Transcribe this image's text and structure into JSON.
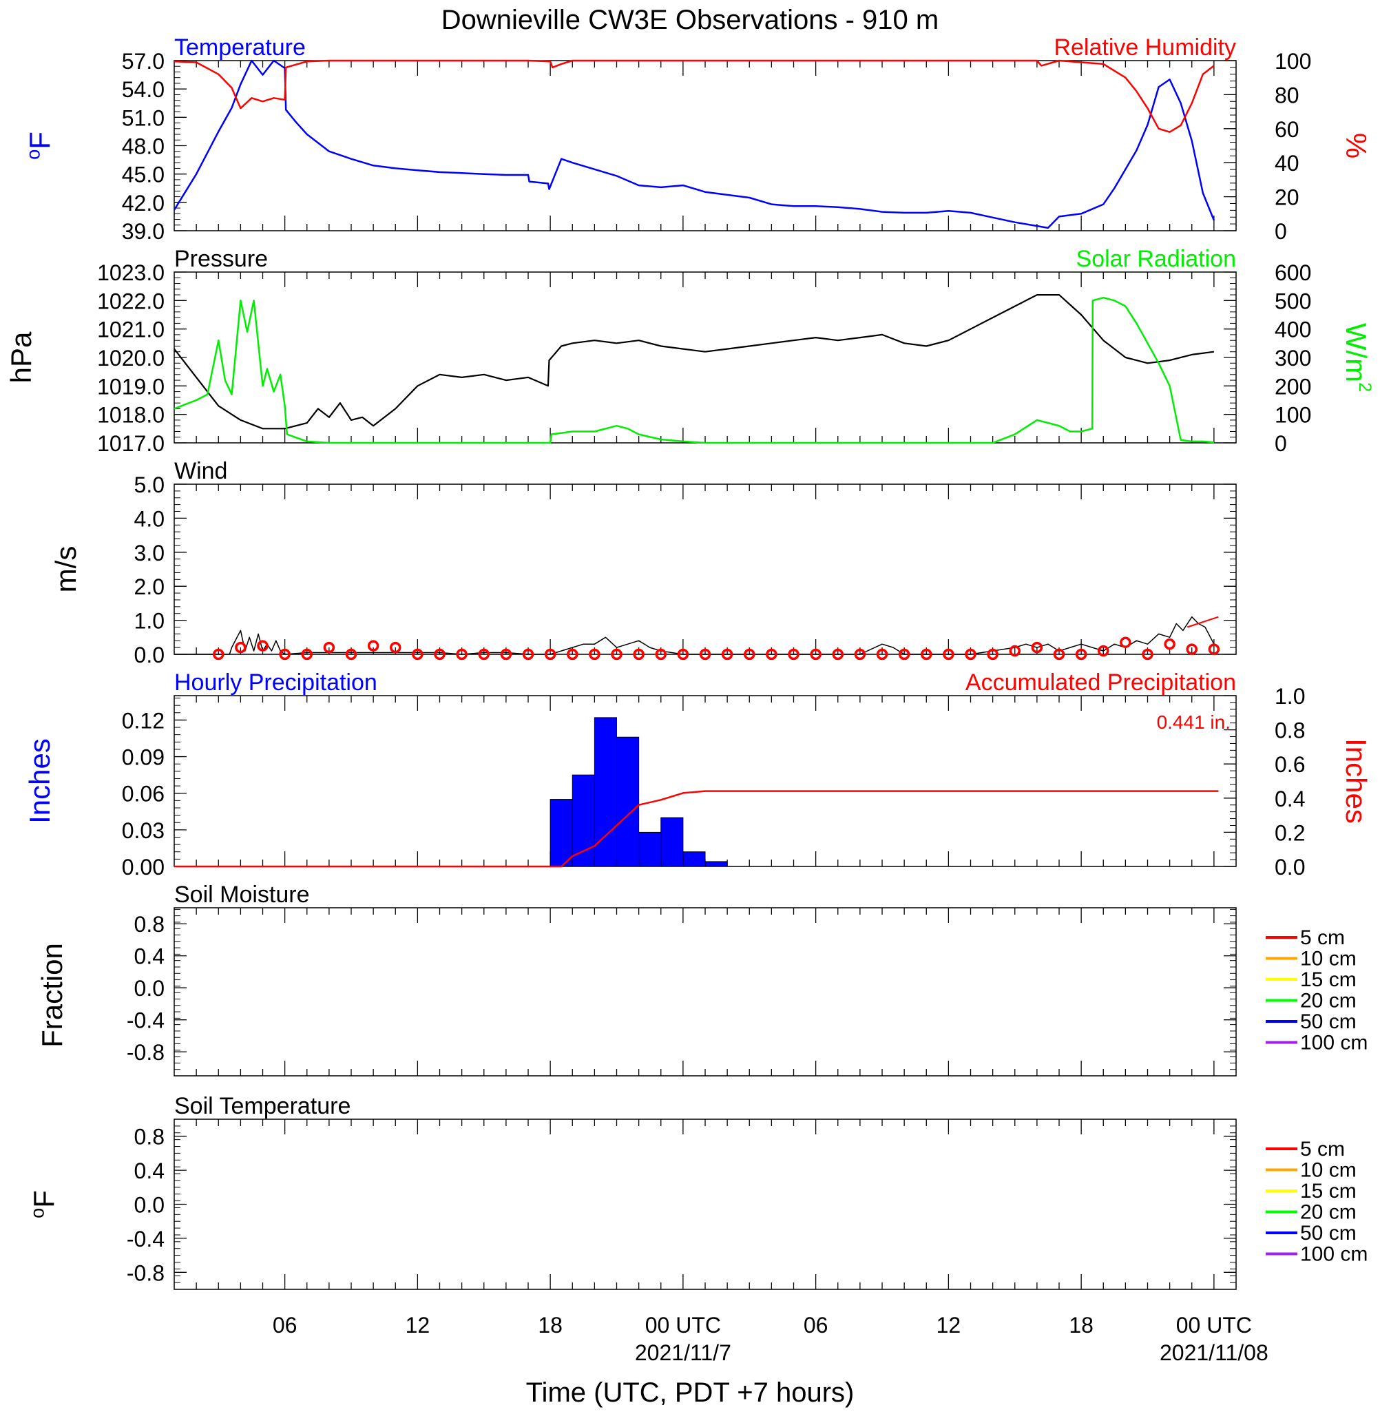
{
  "title": "Downieville CW3E Observations - 910 m",
  "colors": {
    "temperature": "#0000ff",
    "humidity": "#ff0000",
    "pressure": "#000000",
    "solar": "#00ee00",
    "wind": "#000000",
    "gust_marker": "#ff0000",
    "hourly_precip": "#0000ff",
    "accum_precip": "#ff0000"
  },
  "x_axis": {
    "label": "Time (UTC, PDT +7 hours)",
    "range_hours": [
      0,
      48
    ],
    "ticks": [
      {
        "hour": 5,
        "label": "06",
        "date": ""
      },
      {
        "hour": 11,
        "label": "12",
        "date": ""
      },
      {
        "hour": 17,
        "label": "18",
        "date": ""
      },
      {
        "hour": 23,
        "label": "00 UTC",
        "date": "2021/11/7"
      },
      {
        "hour": 29,
        "label": "06",
        "date": ""
      },
      {
        "hour": 35,
        "label": "12",
        "date": ""
      },
      {
        "hour": 41,
        "label": "18",
        "date": ""
      },
      {
        "hour": 47,
        "label": "00 UTC",
        "date": "2021/11/08"
      }
    ]
  },
  "chart_data": [
    {
      "type": "line",
      "panel": "temperature-humidity",
      "left_axis": {
        "title": "Temperature",
        "units": "°F",
        "ylim": [
          39,
          57
        ],
        "ticks": [
          "39.0",
          "42.0",
          "45.0",
          "48.0",
          "51.0",
          "54.0",
          "57.0"
        ]
      },
      "right_axis": {
        "title": "Relative Humidity",
        "units": "%",
        "ylim": [
          0,
          100
        ],
        "ticks": [
          "0",
          "20",
          "40",
          "60",
          "80",
          "100"
        ]
      },
      "series": [
        {
          "name": "Temperature",
          "axis": "left",
          "color": "#0000ff",
          "x": [
            0,
            1,
            2,
            2.6,
            3,
            3.5,
            4,
            4.5,
            5,
            5.05,
            5.5,
            6,
            7,
            8,
            9,
            10,
            11,
            12,
            13,
            14,
            15,
            16,
            16.05,
            16.9,
            16.95,
            17.5,
            18,
            19,
            20,
            21,
            22,
            23,
            24,
            25,
            26,
            27,
            28,
            29,
            30,
            31,
            32,
            33,
            34,
            35,
            36,
            37,
            38,
            39,
            39.5,
            40,
            41,
            42,
            42.5,
            43,
            43.5,
            44,
            44.5,
            45,
            45.5,
            46,
            46.5,
            47
          ],
          "y": [
            41.2,
            45,
            49.5,
            52,
            54.5,
            57,
            55.5,
            57,
            56.2,
            51.8,
            50.5,
            49.2,
            47.4,
            46.6,
            45.9,
            45.6,
            45.4,
            45.2,
            45.1,
            45,
            44.9,
            44.9,
            44.2,
            44,
            43.4,
            46.6,
            46.2,
            45.5,
            44.8,
            43.8,
            43.6,
            43.8,
            43.1,
            42.8,
            42.5,
            41.8,
            41.6,
            41.6,
            41.5,
            41.3,
            41,
            40.9,
            40.9,
            41.1,
            40.9,
            40.4,
            39.9,
            39.5,
            39.3,
            40.5,
            40.8,
            41.8,
            43.5,
            45.5,
            47.5,
            50.2,
            54.2,
            55,
            52.5,
            48.5,
            43,
            40.1
          ]
        },
        {
          "name": "Relative Humidity",
          "axis": "right",
          "color": "#ff0000",
          "x": [
            0,
            1,
            2,
            2.6,
            3,
            3.5,
            4,
            4.5,
            5,
            5.05,
            6,
            7,
            8,
            9,
            10,
            11,
            12,
            13,
            14,
            15,
            16,
            17,
            17.1,
            17.5,
            18,
            20,
            22,
            24,
            26,
            28,
            30,
            32,
            34,
            36,
            38,
            39,
            39.2,
            40,
            41,
            42,
            43,
            43.5,
            44,
            44.5,
            45,
            45.5,
            46,
            46.5,
            47
          ],
          "y": [
            99.5,
            99,
            92,
            84,
            72,
            78,
            76,
            78,
            77,
            96,
            99.5,
            100,
            100,
            100,
            100,
            100,
            100,
            100,
            100,
            100,
            100,
            99.5,
            96,
            98,
            100,
            100,
            100,
            100,
            100,
            100,
            100,
            100,
            100,
            100,
            100,
            100,
            97,
            100,
            99,
            98,
            90,
            82,
            72,
            60,
            58,
            62,
            75,
            92,
            97
          ]
        }
      ]
    },
    {
      "type": "line",
      "panel": "pressure-solar",
      "left_axis": {
        "title": "Pressure",
        "units": "hPa",
        "ylim": [
          1017,
          1023
        ],
        "ticks": [
          "1017.0",
          "1018.0",
          "1019.0",
          "1020.0",
          "1021.0",
          "1022.0",
          "1023.0"
        ]
      },
      "right_axis": {
        "title": "Solar Radiation",
        "units": "W/m2",
        "ylim": [
          0,
          600
        ],
        "ticks": [
          "0",
          "100",
          "200",
          "300",
          "400",
          "500",
          "600"
        ]
      },
      "series": [
        {
          "name": "Pressure",
          "axis": "left",
          "color": "#000000",
          "x": [
            0,
            1,
            2,
            3,
            4,
            5,
            6,
            6.5,
            7,
            7.5,
            8,
            8.5,
            9,
            10,
            11,
            12,
            13,
            14,
            15,
            16,
            16.9,
            16.95,
            17.5,
            18,
            19,
            20,
            21,
            22,
            23,
            24,
            25,
            26,
            27,
            28,
            29,
            30,
            31,
            32,
            33,
            34,
            35,
            36,
            37,
            38,
            39,
            40,
            41,
            42,
            43,
            44,
            45,
            46,
            47
          ],
          "y": [
            1020.3,
            1019.3,
            1018.3,
            1017.8,
            1017.5,
            1017.5,
            1017.7,
            1018.2,
            1017.9,
            1018.4,
            1017.8,
            1017.9,
            1017.6,
            1018.2,
            1019.0,
            1019.4,
            1019.3,
            1019.4,
            1019.2,
            1019.3,
            1019.0,
            1019.9,
            1020.4,
            1020.5,
            1020.6,
            1020.5,
            1020.6,
            1020.4,
            1020.3,
            1020.2,
            1020.3,
            1020.4,
            1020.5,
            1020.6,
            1020.7,
            1020.6,
            1020.7,
            1020.8,
            1020.5,
            1020.4,
            1020.6,
            1021.0,
            1021.4,
            1021.8,
            1022.2,
            1022.2,
            1021.5,
            1020.6,
            1020.0,
            1019.8,
            1019.9,
            1020.1,
            1020.2
          ]
        },
        {
          "name": "Solar Radiation",
          "axis": "right",
          "color": "#00ee00",
          "x": [
            0,
            1,
            1.5,
            2,
            2.3,
            2.6,
            3,
            3.3,
            3.6,
            4,
            4.2,
            4.5,
            4.8,
            5,
            5.1,
            6,
            7,
            17,
            17.05,
            18,
            19,
            20,
            20.5,
            21,
            22,
            23,
            24,
            25,
            26,
            37,
            38,
            39,
            40,
            40.5,
            41,
            41.5,
            41.52,
            42,
            42.5,
            43,
            43.5,
            44,
            44.5,
            45,
            45.5,
            46,
            46.5,
            47
          ],
          "y": [
            120,
            150,
            170,
            360,
            220,
            170,
            500,
            390,
            500,
            200,
            260,
            180,
            240,
            130,
            30,
            5,
            0,
            0,
            30,
            40,
            40,
            60,
            50,
            30,
            12,
            5,
            0,
            0,
            0,
            0,
            30,
            80,
            60,
            40,
            40,
            50,
            500,
            510,
            500,
            480,
            420,
            350,
            280,
            200,
            10,
            5,
            5,
            2
          ]
        }
      ]
    },
    {
      "type": "line",
      "panel": "wind",
      "left_axis": {
        "title": "Wind",
        "units": "m/s",
        "ylim": [
          0,
          5
        ],
        "ticks": [
          "0.0",
          "1.0",
          "2.0",
          "3.0",
          "4.0",
          "5.0"
        ]
      },
      "series": [
        {
          "name": "Wind",
          "color": "#000000",
          "x": [
            0,
            2,
            2.5,
            2.6,
            3,
            3.2,
            3.4,
            3.6,
            3.8,
            4.0,
            4.2,
            4.4,
            4.6,
            4.8,
            5,
            6,
            7,
            8,
            9,
            10,
            11,
            12,
            13,
            14,
            15,
            16,
            17,
            18,
            18.5,
            19,
            19.5,
            20,
            20.5,
            21,
            21.5,
            22,
            23,
            31,
            32,
            32.5,
            33,
            34,
            36,
            38,
            38.5,
            39,
            39.5,
            40,
            40.5,
            41,
            41.5,
            42,
            42.5,
            43,
            43.5,
            44,
            44.5,
            45,
            45.3,
            45.6,
            46,
            46.3,
            46.6,
            47
          ],
          "y": [
            0,
            0,
            0,
            0.2,
            0.7,
            0.1,
            0.5,
            0.1,
            0.6,
            0.1,
            0.3,
            0.1,
            0.4,
            0.1,
            0,
            0.05,
            0.05,
            0.05,
            0.05,
            0.05,
            0.05,
            0.05,
            0,
            0.05,
            0.05,
            0,
            0,
            0.2,
            0.3,
            0.3,
            0.5,
            0.2,
            0.3,
            0.4,
            0.2,
            0.1,
            0,
            0,
            0.3,
            0.2,
            0,
            0,
            0,
            0.2,
            0.3,
            0.2,
            0.3,
            0.1,
            0.2,
            0.3,
            0.2,
            0.1,
            0.3,
            0.2,
            0.4,
            0.3,
            0.6,
            0.5,
            0.9,
            0.7,
            1.1,
            0.9,
            0.8,
            0.3
          ]
        },
        {
          "name": "Wind trend",
          "color": "#ff0000",
          "x": [
            45.8,
            47.2
          ],
          "y": [
            0.8,
            1.1
          ]
        }
      ],
      "markers": {
        "name": "Gust",
        "color": "#ff0000",
        "x": [
          2,
          3,
          4,
          5,
          6,
          7,
          8,
          9,
          10,
          11,
          12,
          13,
          14,
          15,
          16,
          17,
          18,
          19,
          20,
          21,
          22,
          23,
          24,
          25,
          26,
          27,
          28,
          29,
          30,
          31,
          32,
          33,
          34,
          35,
          36,
          37,
          38,
          39,
          40,
          41,
          42,
          43,
          44,
          45,
          46,
          47
        ],
        "y": [
          0,
          0.2,
          0.25,
          0,
          0,
          0.2,
          0,
          0.25,
          0.2,
          0,
          0,
          0,
          0,
          0,
          0,
          0,
          0,
          0,
          0,
          0,
          0,
          0,
          0,
          0,
          0,
          0,
          0,
          0,
          0,
          0,
          0,
          0,
          0,
          0,
          0,
          0,
          0.1,
          0.2,
          0,
          0,
          0.1,
          0.35,
          0,
          0.3,
          0.15,
          0.15
        ]
      }
    },
    {
      "type": "bar",
      "panel": "precipitation",
      "left_axis": {
        "title": "Hourly Precipitation",
        "units": "Inches",
        "ylim": [
          0,
          0.14
        ],
        "ticks": [
          "0.00",
          "0.03",
          "0.06",
          "0.09",
          "0.12"
        ]
      },
      "right_axis": {
        "title": "Accumulated Precipitation",
        "units": "Inches",
        "ylim": [
          0,
          1
        ],
        "ticks": [
          "0.0",
          "0.2",
          "0.4",
          "0.6",
          "0.8",
          "1.0"
        ]
      },
      "total_label": "0.441 in.",
      "bars": {
        "name": "Hourly Precipitation",
        "color": "#0000ff",
        "x": [
          17,
          18,
          19,
          20,
          21,
          22,
          23,
          24
        ],
        "values": [
          0.055,
          0.075,
          0.122,
          0.106,
          0.028,
          0.04,
          0.012,
          0.004
        ]
      },
      "line": {
        "name": "Accumulated Precipitation",
        "color": "#ff0000",
        "x": [
          0,
          17.5,
          18,
          19,
          20,
          20.5,
          21,
          22,
          23,
          24,
          47.2
        ],
        "y": [
          0,
          0,
          0.06,
          0.12,
          0.24,
          0.3,
          0.36,
          0.39,
          0.43,
          0.441,
          0.441
        ]
      }
    },
    {
      "type": "line",
      "panel": "soil-moisture",
      "left_axis": {
        "title": "Soil Moisture",
        "units": "Fraction",
        "ylim": [
          -1.1,
          1.0
        ],
        "ticks": [
          "-0.8",
          "-0.4",
          "0.0",
          "0.4",
          "0.8"
        ]
      },
      "legend": [
        {
          "label": "5 cm",
          "color": "#ff0000"
        },
        {
          "label": "10 cm",
          "color": "#ffa500"
        },
        {
          "label": "15 cm",
          "color": "#ffff00"
        },
        {
          "label": "20 cm",
          "color": "#00ff00"
        },
        {
          "label": "50 cm",
          "color": "#0000ff"
        },
        {
          "label": "100 cm",
          "color": "#a020f0"
        }
      ],
      "series": []
    },
    {
      "type": "line",
      "panel": "soil-temperature",
      "left_axis": {
        "title": "Soil Temperature",
        "units": "°F",
        "ylim": [
          -1.0,
          1.0
        ],
        "ticks": [
          "-0.8",
          "-0.4",
          "0.0",
          "0.4",
          "0.8"
        ]
      },
      "legend": [
        {
          "label": "5 cm",
          "color": "#ff0000"
        },
        {
          "label": "10 cm",
          "color": "#ffa500"
        },
        {
          "label": "15 cm",
          "color": "#ffff00"
        },
        {
          "label": "20 cm",
          "color": "#00ff00"
        },
        {
          "label": "50 cm",
          "color": "#0000ff"
        },
        {
          "label": "100 cm",
          "color": "#a020f0"
        }
      ],
      "series": []
    }
  ]
}
